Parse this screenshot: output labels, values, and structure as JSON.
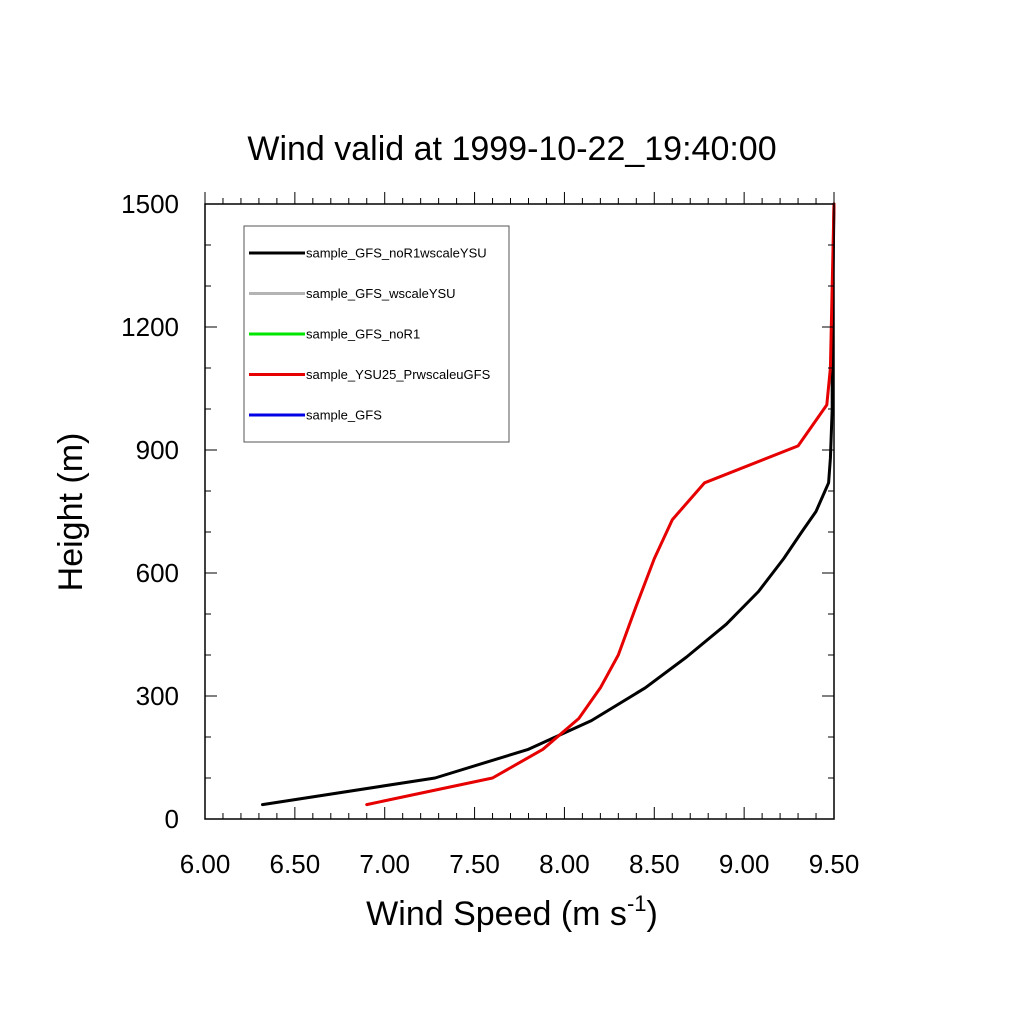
{
  "chart_data": {
    "type": "line",
    "title": "Wind valid at 1999-10-22_19:40:00",
    "xlabel": "Wind Speed (m s",
    "xlabel_superscript": "-1",
    "xlabel_suffix": ")",
    "ylabel": "Height (m)",
    "xlim": [
      6.0,
      9.5
    ],
    "ylim": [
      0,
      1500
    ],
    "xticks": [
      "6.00",
      "6.50",
      "7.00",
      "7.50",
      "8.00",
      "8.50",
      "9.00",
      "9.50"
    ],
    "yticks": [
      "0",
      "300",
      "600",
      "900",
      "1200",
      "1500"
    ],
    "grid": false,
    "legend_position": "top-left",
    "series": [
      {
        "name": "sample_GFS_noR1wscaleYSU",
        "color": "#000000",
        "x": [
          6.32,
          7.28,
          7.8,
          8.15,
          8.45,
          8.68,
          8.9,
          9.08,
          9.22,
          9.32,
          9.4,
          9.45,
          9.47,
          9.48,
          9.49,
          9.49,
          9.5
        ],
        "y": [
          35,
          100,
          170,
          240,
          320,
          395,
          475,
          555,
          635,
          700,
          750,
          800,
          820,
          880,
          1000,
          1200,
          1500
        ]
      },
      {
        "name": "sample_GFS_wscaleYSU",
        "color": "#b4b4b4",
        "x": [],
        "y": []
      },
      {
        "name": "sample_GFS_noR1",
        "color": "#00e600",
        "x": [],
        "y": []
      },
      {
        "name": "sample_YSU25_PrwscaleuGFS",
        "color": "#e60000",
        "x": [
          6.9,
          7.6,
          7.88,
          8.08,
          8.2,
          8.3,
          8.4,
          8.5,
          8.6,
          8.78,
          9.3,
          9.46,
          9.48,
          9.49,
          9.5
        ],
        "y": [
          35,
          100,
          170,
          245,
          320,
          400,
          520,
          635,
          730,
          820,
          910,
          1010,
          1100,
          1300,
          1500
        ]
      },
      {
        "name": "sample_GFS",
        "color": "#0000e6",
        "x": [],
        "y": []
      }
    ]
  }
}
